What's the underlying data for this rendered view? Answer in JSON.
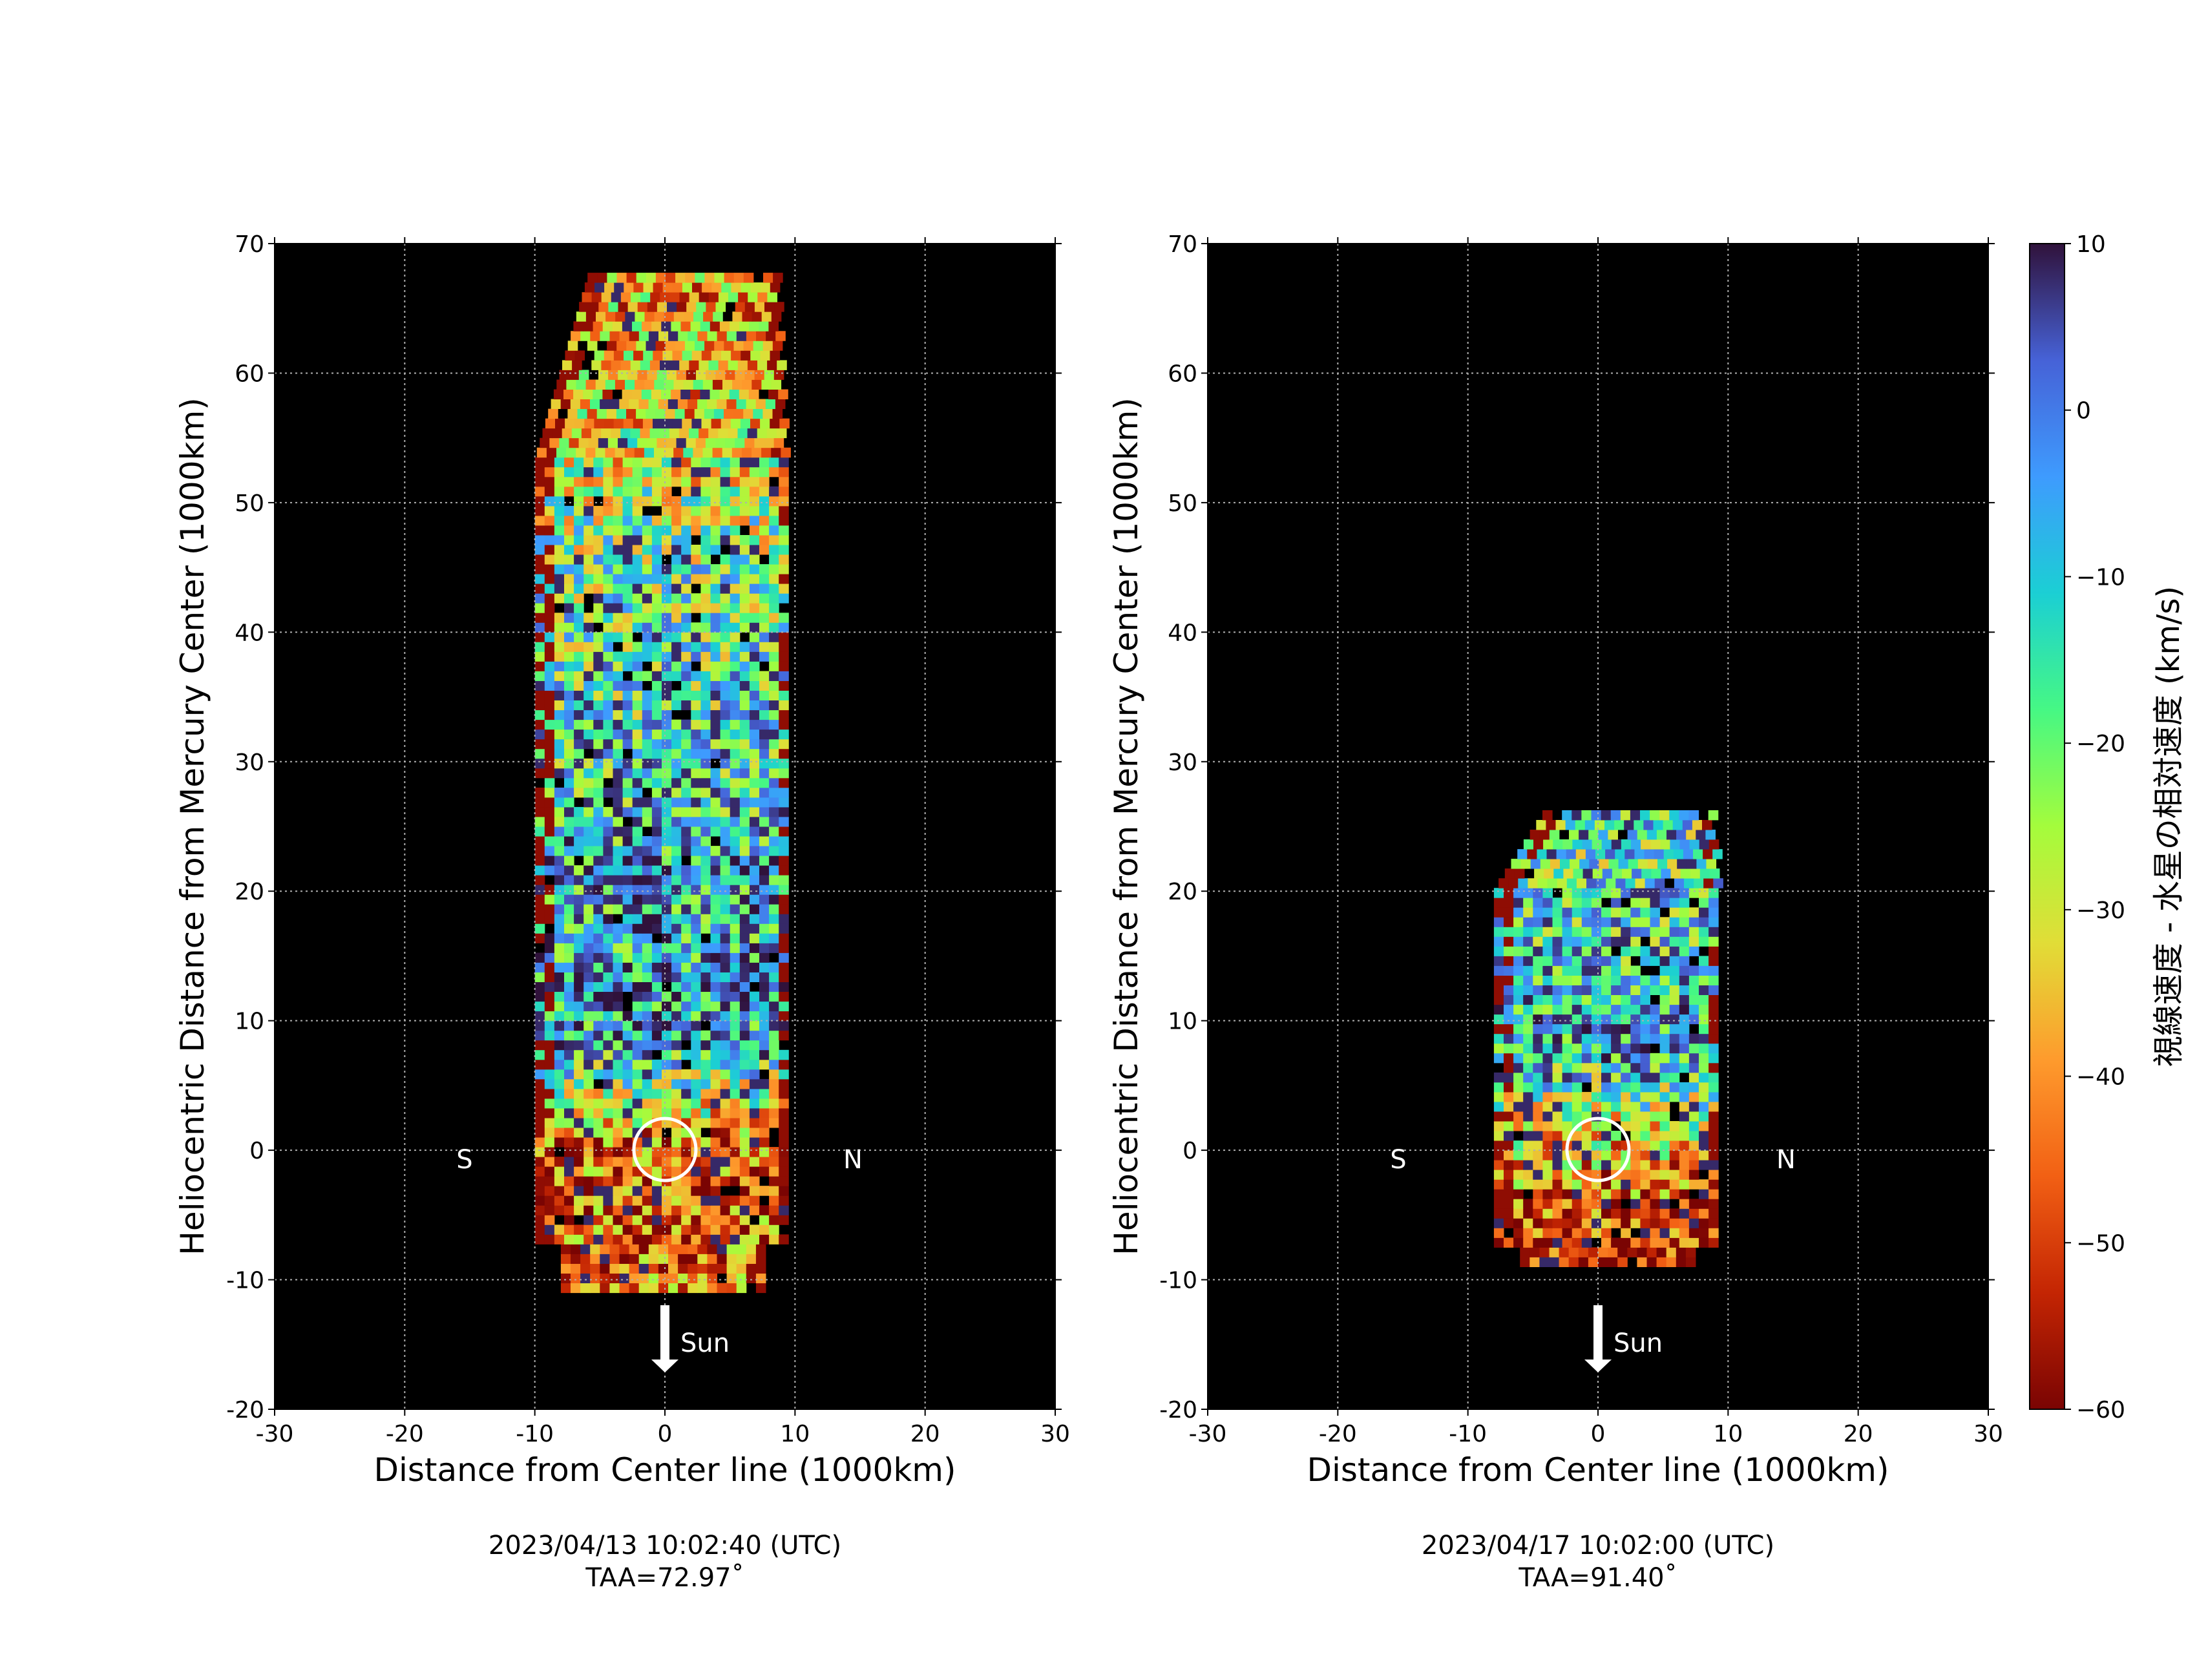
{
  "chart_data": [
    {
      "type": "heatmap",
      "xlabel": "Distance from Center line (1000km)",
      "ylabel": "Heliocentric Distance from Mercury Center (1000km)",
      "xlim": [
        -30,
        30
      ],
      "ylim": [
        -20,
        70
      ],
      "x_ticks": [
        "-30",
        "-20",
        "-10",
        "0",
        "10",
        "20",
        "30"
      ],
      "y_ticks": [
        "-20",
        "-10",
        "0",
        "10",
        "20",
        "30",
        "40",
        "50",
        "60",
        "70"
      ],
      "grid": true,
      "labels": {
        "south": "S",
        "north": "N",
        "sun": "Sun"
      },
      "caption": [
        "2023/04/13 10:02:40 (UTC)",
        "TAA=72.97˚"
      ],
      "emission_extent": {
        "x_range": [
          -10,
          9
        ],
        "y_range": [
          -11,
          67
        ]
      },
      "value_trend": [
        {
          "y": -8,
          "velocity_kms": -45
        },
        {
          "y": 0,
          "velocity_kms": -45
        },
        {
          "y": 8,
          "velocity_kms": -5
        },
        {
          "y": 25,
          "velocity_kms": -10
        },
        {
          "y": 45,
          "velocity_kms": -20
        },
        {
          "y": 60,
          "velocity_kms": -38
        }
      ]
    },
    {
      "type": "heatmap",
      "xlabel": "Distance from Center line (1000km)",
      "ylabel": "Heliocentric Distance from Mercury Center (1000km)",
      "xlim": [
        -30,
        30
      ],
      "ylim": [
        -20,
        70
      ],
      "x_ticks": [
        "-30",
        "-20",
        "-10",
        "0",
        "10",
        "20",
        "30"
      ],
      "y_ticks": [
        "-20",
        "-10",
        "0",
        "10",
        "20",
        "30",
        "40",
        "50",
        "60",
        "70"
      ],
      "grid": true,
      "labels": {
        "south": "S",
        "north": "N",
        "sun": "Sun"
      },
      "caption": [
        "2023/04/17 10:02:00 (UTC)",
        "TAA=91.40˚"
      ],
      "emission_extent": {
        "x_range": [
          -8,
          9
        ],
        "y_range": [
          -9,
          26
        ]
      },
      "value_trend": [
        {
          "y": -8,
          "velocity_kms": -55
        },
        {
          "y": 0,
          "velocity_kms": -35
        },
        {
          "y": 8,
          "velocity_kms": -5
        },
        {
          "y": 20,
          "velocity_kms": -15
        }
      ]
    }
  ],
  "colorbar": {
    "label": "視線速度 - 水星の相対速度 (km/s)",
    "range": [
      -60,
      10
    ],
    "ticks": [
      "10",
      "0",
      "−10",
      "−20",
      "−30",
      "−40",
      "−50",
      "−60"
    ],
    "colormap": [
      "#7a0403",
      "#c42503",
      "#f26014",
      "#fe9b2d",
      "#e1dd37",
      "#a4fc3c",
      "#46f884",
      "#1bcfd4",
      "#3e9bfe",
      "#4662d7",
      "#30123b"
    ]
  }
}
